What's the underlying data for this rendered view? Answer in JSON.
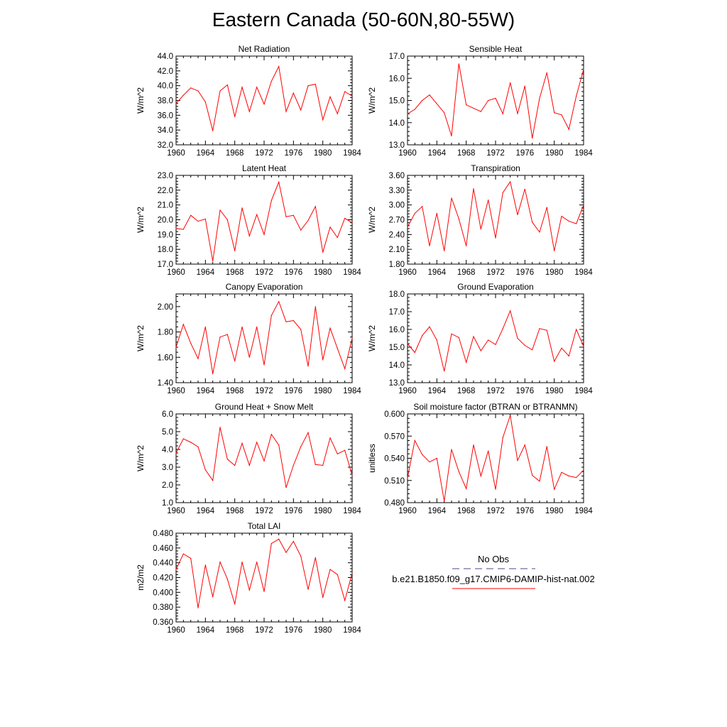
{
  "figure": {
    "title": "Eastern Canada (50-60N,80-55W)",
    "line_color": "#ff0000",
    "obs_line_color": "#4a4a8a"
  },
  "legend": {
    "obs_label": "No Obs",
    "model_label": "b.e21.B1850.f09_g17.CMIP6-DAMIP-hist-nat.002"
  },
  "chart_data": [
    {
      "type": "line",
      "title": "Net Radiation",
      "ylabel": "W/m^2",
      "xlim": [
        1960,
        1984
      ],
      "ylim": [
        32.0,
        44.0
      ],
      "yticks": [
        "32.0",
        "34.0",
        "36.0",
        "38.0",
        "40.0",
        "42.0",
        "44.0"
      ],
      "xticks": [
        "1960",
        "1964",
        "1968",
        "1972",
        "1976",
        "1980",
        "1984"
      ],
      "x": [
        1960,
        1961,
        1962,
        1963,
        1964,
        1965,
        1966,
        1967,
        1968,
        1969,
        1970,
        1971,
        1972,
        1973,
        1974,
        1975,
        1976,
        1977,
        1978,
        1979,
        1980,
        1981,
        1982,
        1983,
        1984
      ],
      "values": [
        37.6,
        38.7,
        39.7,
        39.3,
        37.8,
        33.9,
        39.3,
        40.1,
        35.8,
        39.8,
        36.5,
        39.8,
        37.5,
        40.6,
        42.6,
        36.5,
        39.0,
        36.7,
        40.0,
        40.2,
        35.4,
        38.5,
        36.2,
        39.2,
        38.6
      ]
    },
    {
      "type": "line",
      "title": "Sensible Heat",
      "ylabel": "W/m^2",
      "xlim": [
        1960,
        1984
      ],
      "ylim": [
        13.0,
        17.0
      ],
      "yticks": [
        "13.0",
        "14.0",
        "15.0",
        "16.0",
        "17.0"
      ],
      "xticks": [
        "1960",
        "1964",
        "1968",
        "1972",
        "1976",
        "1980",
        "1984"
      ],
      "x": [
        1960,
        1961,
        1962,
        1963,
        1964,
        1965,
        1966,
        1967,
        1968,
        1969,
        1970,
        1971,
        1972,
        1973,
        1974,
        1975,
        1976,
        1977,
        1978,
        1979,
        1980,
        1981,
        1982,
        1983,
        1984
      ],
      "values": [
        14.4,
        14.6,
        15.0,
        15.25,
        14.85,
        14.45,
        13.4,
        16.65,
        14.8,
        14.65,
        14.5,
        15.0,
        15.1,
        14.4,
        15.8,
        14.4,
        15.65,
        13.3,
        15.1,
        16.25,
        14.45,
        14.35,
        13.7,
        15.2,
        16.4
      ]
    },
    {
      "type": "line",
      "title": "Latent Heat",
      "ylabel": "W/m^2",
      "xlim": [
        1960,
        1984
      ],
      "ylim": [
        17.0,
        23.0
      ],
      "yticks": [
        "17.0",
        "18.0",
        "19.0",
        "20.0",
        "21.0",
        "22.0",
        "23.0"
      ],
      "xticks": [
        "1960",
        "1964",
        "1968",
        "1972",
        "1976",
        "1980",
        "1984"
      ],
      "x": [
        1960,
        1961,
        1962,
        1963,
        1964,
        1965,
        1966,
        1967,
        1968,
        1969,
        1970,
        1971,
        1972,
        1973,
        1974,
        1975,
        1976,
        1977,
        1978,
        1979,
        1980,
        1981,
        1982,
        1983,
        1984
      ],
      "values": [
        19.4,
        19.35,
        20.3,
        19.9,
        20.05,
        17.2,
        20.65,
        20.0,
        17.9,
        20.8,
        18.9,
        20.35,
        19.0,
        21.3,
        22.55,
        20.2,
        20.3,
        19.3,
        19.95,
        20.9,
        17.8,
        19.5,
        18.8,
        20.1,
        19.8
      ]
    },
    {
      "type": "line",
      "title": "Transpiration",
      "ylabel": "W/m^2",
      "xlim": [
        1960,
        1984
      ],
      "ylim": [
        1.8,
        3.6
      ],
      "yticks": [
        "1.80",
        "2.10",
        "2.40",
        "2.70",
        "3.00",
        "3.30",
        "3.60"
      ],
      "xticks": [
        "1960",
        "1964",
        "1968",
        "1972",
        "1976",
        "1980",
        "1984"
      ],
      "x": [
        1960,
        1961,
        1962,
        1963,
        1964,
        1965,
        1966,
        1967,
        1968,
        1969,
        1970,
        1971,
        1972,
        1973,
        1974,
        1975,
        1976,
        1977,
        1978,
        1979,
        1980,
        1981,
        1982,
        1983,
        1984
      ],
      "values": [
        2.55,
        2.83,
        2.97,
        2.17,
        2.83,
        2.07,
        3.14,
        2.72,
        2.17,
        3.33,
        2.51,
        3.1,
        2.33,
        3.25,
        3.47,
        2.8,
        3.32,
        2.65,
        2.45,
        2.95,
        2.07,
        2.77,
        2.67,
        2.62,
        3.0
      ]
    },
    {
      "type": "line",
      "title": "Canopy Evaporation",
      "ylabel": "W/m^2",
      "xlim": [
        1960,
        1984
      ],
      "ylim": [
        1.4,
        2.1
      ],
      "yticks": [
        "1.40",
        "1.60",
        "1.80",
        "2.00"
      ],
      "xticks": [
        "1960",
        "1964",
        "1968",
        "1972",
        "1976",
        "1980",
        "1984"
      ],
      "x": [
        1960,
        1961,
        1962,
        1963,
        1964,
        1965,
        1966,
        1967,
        1968,
        1969,
        1970,
        1971,
        1972,
        1973,
        1974,
        1975,
        1976,
        1977,
        1978,
        1979,
        1980,
        1981,
        1982,
        1983,
        1984
      ],
      "values": [
        1.68,
        1.86,
        1.71,
        1.59,
        1.84,
        1.47,
        1.76,
        1.78,
        1.57,
        1.84,
        1.6,
        1.84,
        1.54,
        1.93,
        2.04,
        1.88,
        1.89,
        1.82,
        1.53,
        2.0,
        1.58,
        1.83,
        1.67,
        1.51,
        1.75
      ]
    },
    {
      "type": "line",
      "title": "Ground Evaporation",
      "ylabel": "W/m^2",
      "xlim": [
        1960,
        1984
      ],
      "ylim": [
        13.0,
        18.0
      ],
      "yticks": [
        "13.0",
        "14.0",
        "15.0",
        "16.0",
        "17.0",
        "18.0"
      ],
      "xticks": [
        "1960",
        "1964",
        "1968",
        "1972",
        "1976",
        "1980",
        "1984"
      ],
      "x": [
        1960,
        1961,
        1962,
        1963,
        1964,
        1965,
        1966,
        1967,
        1968,
        1969,
        1970,
        1971,
        1972,
        1973,
        1974,
        1975,
        1976,
        1977,
        1978,
        1979,
        1980,
        1981,
        1982,
        1983,
        1984
      ],
      "values": [
        15.2,
        14.7,
        15.65,
        16.15,
        15.4,
        13.65,
        15.75,
        15.55,
        14.15,
        15.6,
        14.8,
        15.4,
        15.15,
        16.05,
        17.05,
        15.5,
        15.1,
        14.85,
        16.05,
        15.95,
        14.2,
        14.95,
        14.5,
        16.0,
        15.05
      ]
    },
    {
      "type": "line",
      "title": "Ground Heat + Snow Melt",
      "ylabel": "W/m^2",
      "xlim": [
        1960,
        1984
      ],
      "ylim": [
        1.0,
        6.0
      ],
      "yticks": [
        "1.0",
        "2.0",
        "3.0",
        "4.0",
        "5.0",
        "6.0"
      ],
      "xticks": [
        "1960",
        "1964",
        "1968",
        "1972",
        "1976",
        "1980",
        "1984"
      ],
      "x": [
        1960,
        1961,
        1962,
        1963,
        1964,
        1965,
        1966,
        1967,
        1968,
        1969,
        1970,
        1971,
        1972,
        1973,
        1974,
        1975,
        1976,
        1977,
        1978,
        1979,
        1980,
        1981,
        1982,
        1983,
        1984
      ],
      "values": [
        3.8,
        4.6,
        4.4,
        4.15,
        2.85,
        2.25,
        5.25,
        3.45,
        3.1,
        4.35,
        3.1,
        4.4,
        3.35,
        4.85,
        4.25,
        1.85,
        3.1,
        4.15,
        4.95,
        3.15,
        3.1,
        4.65,
        3.75,
        3.95,
        2.55
      ]
    },
    {
      "type": "line",
      "title": "Soil moisture factor (BTRAN or BTRANMN)",
      "ylabel": "unitless",
      "xlim": [
        1960,
        1984
      ],
      "ylim": [
        0.48,
        0.6
      ],
      "yticks": [
        "0.480",
        "0.510",
        "0.540",
        "0.570",
        "0.600"
      ],
      "xticks": [
        "1960",
        "1964",
        "1968",
        "1972",
        "1976",
        "1980",
        "1984"
      ],
      "x": [
        1960,
        1961,
        1962,
        1963,
        1964,
        1965,
        1966,
        1967,
        1968,
        1969,
        1970,
        1971,
        1972,
        1973,
        1974,
        1975,
        1976,
        1977,
        1978,
        1979,
        1980,
        1981,
        1982,
        1983,
        1984
      ],
      "values": [
        0.513,
        0.564,
        0.545,
        0.535,
        0.54,
        0.482,
        0.552,
        0.522,
        0.499,
        0.558,
        0.516,
        0.55,
        0.498,
        0.568,
        0.598,
        0.537,
        0.558,
        0.517,
        0.509,
        0.556,
        0.498,
        0.521,
        0.516,
        0.514,
        0.524
      ]
    },
    {
      "type": "line",
      "title": "Total LAI",
      "ylabel": "m2/m2",
      "xlim": [
        1960,
        1984
      ],
      "ylim": [
        0.36,
        0.48
      ],
      "yticks": [
        "0.360",
        "0.380",
        "0.400",
        "0.420",
        "0.440",
        "0.460",
        "0.480"
      ],
      "xticks": [
        "1960",
        "1964",
        "1968",
        "1972",
        "1976",
        "1980",
        "1984"
      ],
      "x": [
        1960,
        1961,
        1962,
        1963,
        1964,
        1965,
        1966,
        1967,
        1968,
        1969,
        1970,
        1971,
        1972,
        1973,
        1974,
        1975,
        1976,
        1977,
        1978,
        1979,
        1980,
        1981,
        1982,
        1983,
        1984
      ],
      "values": [
        0.431,
        0.452,
        0.446,
        0.379,
        0.437,
        0.394,
        0.441,
        0.418,
        0.384,
        0.441,
        0.403,
        0.441,
        0.401,
        0.466,
        0.472,
        0.454,
        0.469,
        0.449,
        0.404,
        0.447,
        0.393,
        0.431,
        0.424,
        0.389,
        0.426
      ]
    }
  ]
}
